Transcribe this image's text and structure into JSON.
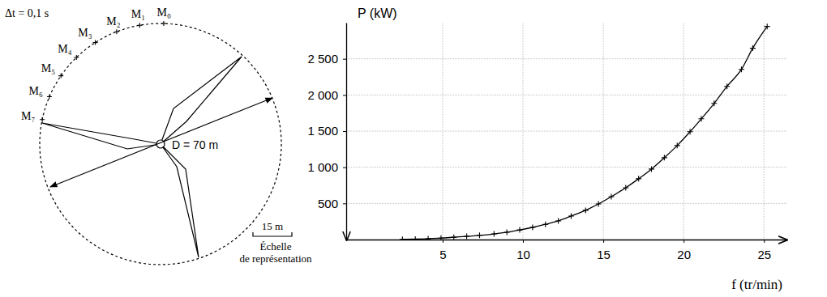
{
  "chart_data": {
    "type": "line",
    "xlabel": "f (tr/min)",
    "ylabel": "P (kW)",
    "x": [
      2.5,
      3.3,
      4.1,
      4.9,
      5.7,
      6.5,
      7.3,
      8.2,
      9.0,
      9.8,
      10.6,
      11.4,
      12.2,
      13.0,
      13.9,
      14.7,
      15.5,
      16.4,
      17.2,
      18.0,
      18.8,
      19.6,
      20.4,
      21.1,
      21.9,
      22.7,
      23.6,
      24.3,
      25.2
    ],
    "values": [
      3,
      6,
      12,
      20,
      32,
      44,
      58,
      78,
      101,
      133,
      168,
      210,
      258,
      325,
      404,
      493,
      594,
      717,
      841,
      975,
      1132,
      1300,
      1491,
      1670,
      1883,
      2119,
      2354,
      2646,
      2948
    ],
    "color": "#000000",
    "marker": "plus",
    "line_style": "solid",
    "xlim": [
      -1,
      26.4
    ],
    "ylim": [
      0,
      3000
    ],
    "xticks": [
      5,
      10,
      15,
      20,
      25
    ],
    "yticks": [
      {
        "value": 500,
        "label": "500"
      },
      {
        "value": 1000,
        "label": "1 000"
      },
      {
        "value": 1500,
        "label": "1 500"
      },
      {
        "value": 2000,
        "label": "2 000"
      },
      {
        "value": 2500,
        "label": "2 500"
      }
    ],
    "grid": true
  },
  "diagram": {
    "time_step": "Δt = 0,1 s",
    "points": [
      "M₀",
      "M₁",
      "M₂",
      "M₃",
      "M₄",
      "M₅",
      "M₆",
      "M₇"
    ],
    "diameter_label": "D = 70 m",
    "scale": {
      "label": "15 m",
      "caption": [
        "Échelle",
        "de représentation"
      ]
    }
  }
}
